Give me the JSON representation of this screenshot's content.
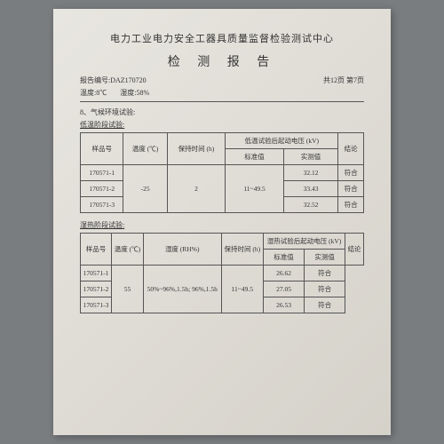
{
  "header": {
    "org": "电力工业电力安全工器具质量监督检验测试中心",
    "title": "检 测 报 告",
    "report_no_label": "报告编号:",
    "report_no": "DAZ170720",
    "temp_label": "温度:",
    "temp": "8℃",
    "humidity_label": "湿度:",
    "humidity": "58%",
    "pages": "共12页 第7页"
  },
  "section8": "8、气候环境试验:",
  "sub_low": "低温阶段试验:",
  "sub_hot": "湿热阶段试验:",
  "t1": {
    "h_sample": "样品号",
    "h_temp": "温度 (℃)",
    "h_time": "保持时间 (h)",
    "h_volt": "低温试验后起动电压 (kV)",
    "h_std": "标准值",
    "h_meas": "实测值",
    "h_concl": "结论",
    "temp_val": "-25",
    "time_val": "2",
    "std_val": "11~49.5",
    "rows": [
      {
        "id": "170571-1",
        "m": "32.12",
        "c": "符合"
      },
      {
        "id": "170571-2",
        "m": "33.43",
        "c": "符合"
      },
      {
        "id": "170571-3",
        "m": "32.52",
        "c": "符合"
      }
    ]
  },
  "t2": {
    "h_sample": "样品号",
    "h_temp": "温度 (℃)",
    "h_hum": "湿度 (RH%)",
    "h_time": "保持时间 (h)",
    "h_volt": "湿热试验后起动电压 (kV)",
    "h_std": "标准值",
    "h_meas": "实测值",
    "h_concl": "结论",
    "temp_val": "55",
    "hum_val": "50%~96%,1.5h; 96%,1.5h",
    "std_val": "11~49.5",
    "rows": [
      {
        "id": "170571-1",
        "m": "26.62",
        "c": "符合"
      },
      {
        "id": "170571-2",
        "m": "27.05",
        "c": "符合"
      },
      {
        "id": "170571-3",
        "m": "26.53",
        "c": "符合"
      }
    ]
  }
}
